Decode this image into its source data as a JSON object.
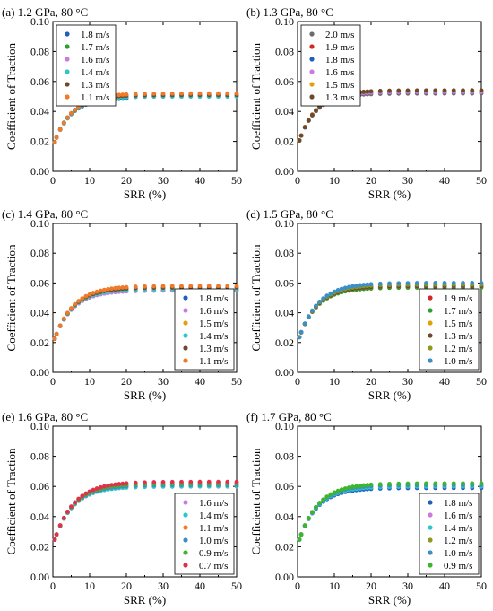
{
  "chart_data": [
    {
      "type": "scatter",
      "panel_title": "(a) 1.2 GPa, 80 °C",
      "xlabel": "SRR (%)",
      "ylabel": "Coefficient of Traction",
      "xlim": [
        0,
        50
      ],
      "ylim": [
        0,
        0.1
      ],
      "xticks": [
        0,
        10,
        20,
        30,
        40,
        50
      ],
      "yticks": [
        "0.00",
        "0.02",
        "0.04",
        "0.06",
        "0.08",
        "0.10"
      ],
      "legend_position": "top-left",
      "x": [
        0.5,
        1,
        2,
        3,
        4,
        5,
        6,
        7,
        8,
        9,
        10,
        11,
        12,
        13,
        14,
        15,
        16,
        17,
        18,
        19,
        20,
        22.5,
        25,
        27.5,
        30,
        32.5,
        35,
        37.5,
        40,
        42.5,
        45,
        47.5,
        50
      ],
      "series": [
        {
          "name": "1.8 m/s",
          "color": "#1f5fbf",
          "ymax": 0.049,
          "tau": 4.5,
          "y0": 0.016,
          "xmax": 22
        },
        {
          "name": "1.7 m/s",
          "color": "#2ca02c",
          "ymax": 0.05,
          "tau": 4.5,
          "y0": 0.016,
          "xmax": 50
        },
        {
          "name": "1.6 m/s",
          "color": "#c77ddf",
          "ymax": 0.05,
          "tau": 4.6,
          "y0": 0.016,
          "xmax": 50
        },
        {
          "name": "1.4 m/s",
          "color": "#2bc8c8",
          "ymax": 0.05,
          "tau": 4.7,
          "y0": 0.016,
          "xmax": 50
        },
        {
          "name": "1.3 m/s",
          "color": "#6b4a2e",
          "ymax": 0.051,
          "tau": 4.8,
          "y0": 0.016,
          "xmax": 50
        },
        {
          "name": "1.1 m/s",
          "color": "#f07a2a",
          "ymax": 0.052,
          "tau": 5.0,
          "y0": 0.016,
          "xmax": 50
        }
      ]
    },
    {
      "type": "scatter",
      "panel_title": "(b) 1.3 GPa, 80 °C",
      "xlabel": "SRR (%)",
      "ylabel": "Coefficient of Traction",
      "xlim": [
        0,
        50
      ],
      "ylim": [
        0,
        0.1
      ],
      "xticks": [
        0,
        10,
        20,
        30,
        40,
        50
      ],
      "yticks": [
        "0.00",
        "0.02",
        "0.04",
        "0.06",
        "0.08",
        "0.10"
      ],
      "legend_position": "top-left",
      "x": [
        0.5,
        1,
        2,
        3,
        4,
        5,
        6,
        7,
        8,
        9,
        10,
        11,
        12,
        13,
        14,
        15,
        16,
        17,
        18,
        19,
        20,
        22.5,
        25,
        27.5,
        30,
        32.5,
        35,
        37.5,
        40,
        42.5,
        45,
        47.5,
        50
      ],
      "series": [
        {
          "name": "2.0 m/s",
          "color": "#6b6b6b",
          "ymax": 0.052,
          "tau": 4.6,
          "y0": 0.017,
          "xmax": 50
        },
        {
          "name": "1.9 m/s",
          "color": "#d62728",
          "ymax": 0.053,
          "tau": 4.6,
          "y0": 0.017,
          "xmax": 50
        },
        {
          "name": "1.8 m/s",
          "color": "#1f5fbf",
          "ymax": 0.053,
          "tau": 4.7,
          "y0": 0.017,
          "xmax": 50
        },
        {
          "name": "1.6 m/s",
          "color": "#c77ddf",
          "ymax": 0.053,
          "tau": 4.7,
          "y0": 0.017,
          "xmax": 50
        },
        {
          "name": "1.5 m/s",
          "color": "#e0a10b",
          "ymax": 0.054,
          "tau": 4.8,
          "y0": 0.017,
          "xmax": 50
        },
        {
          "name": "1.3 m/s",
          "color": "#6b4a2e",
          "ymax": 0.054,
          "tau": 4.9,
          "y0": 0.017,
          "xmax": 50
        }
      ]
    },
    {
      "type": "scatter",
      "panel_title": "(c) 1.4 GPa, 80 °C",
      "xlabel": "SRR (%)",
      "ylabel": "Coefficient of Traction",
      "xlim": [
        0,
        50
      ],
      "ylim": [
        0,
        0.1
      ],
      "xticks": [
        0,
        10,
        20,
        30,
        40,
        50
      ],
      "yticks": [
        "0.00",
        "0.02",
        "0.04",
        "0.06",
        "0.08",
        "0.10"
      ],
      "legend_position": "bottom-right",
      "x": [
        0.5,
        1,
        2,
        3,
        4,
        5,
        6,
        7,
        8,
        9,
        10,
        11,
        12,
        13,
        14,
        15,
        16,
        17,
        18,
        19,
        20,
        22.5,
        25,
        27.5,
        30,
        32.5,
        35,
        37.5,
        40,
        42.5,
        45,
        47.5,
        50
      ],
      "series": [
        {
          "name": "1.8 m/s",
          "color": "#1f5fbf",
          "ymax": 0.055,
          "tau": 4.9,
          "y0": 0.019,
          "xmax": 50
        },
        {
          "name": "1.6 m/s",
          "color": "#c77ddf",
          "ymax": 0.055,
          "tau": 4.9,
          "y0": 0.019,
          "xmax": 50
        },
        {
          "name": "1.5 m/s",
          "color": "#e0a10b",
          "ymax": 0.056,
          "tau": 5.0,
          "y0": 0.019,
          "xmax": 50
        },
        {
          "name": "1.4 m/s",
          "color": "#2bc8c8",
          "ymax": 0.056,
          "tau": 5.0,
          "y0": 0.019,
          "xmax": 50
        },
        {
          "name": "1.3 m/s",
          "color": "#6b4a2e",
          "ymax": 0.057,
          "tau": 5.1,
          "y0": 0.019,
          "xmax": 50
        },
        {
          "name": "1.1 m/s",
          "color": "#f07a2a",
          "ymax": 0.058,
          "tau": 5.2,
          "y0": 0.019,
          "xmax": 50
        }
      ]
    },
    {
      "type": "scatter",
      "panel_title": "(d) 1.5 GPa, 80 °C",
      "xlabel": "SRR (%)",
      "ylabel": "Coefficient of Traction",
      "xlim": [
        0,
        50
      ],
      "ylim": [
        0,
        0.1
      ],
      "xticks": [
        0,
        10,
        20,
        30,
        40,
        50
      ],
      "yticks": [
        "0.00",
        "0.02",
        "0.04",
        "0.06",
        "0.08",
        "0.10"
      ],
      "legend_position": "bottom-right",
      "x": [
        0.5,
        1,
        2,
        3,
        4,
        5,
        6,
        7,
        8,
        9,
        10,
        11,
        12,
        13,
        14,
        15,
        16,
        17,
        18,
        19,
        20,
        22.5,
        25,
        27.5,
        30,
        32.5,
        35,
        37.5,
        40,
        42.5,
        45,
        47.5,
        50
      ],
      "series": [
        {
          "name": "1.9 m/s",
          "color": "#d62728",
          "ymax": 0.057,
          "tau": 4.9,
          "y0": 0.02,
          "xmax": 50
        },
        {
          "name": "1.7 m/s",
          "color": "#2ca02c",
          "ymax": 0.057,
          "tau": 4.9,
          "y0": 0.02,
          "xmax": 50
        },
        {
          "name": "1.5 m/s",
          "color": "#e0a10b",
          "ymax": 0.058,
          "tau": 5.0,
          "y0": 0.02,
          "xmax": 50
        },
        {
          "name": "1.3 m/s",
          "color": "#6b4a2e",
          "ymax": 0.058,
          "tau": 5.0,
          "y0": 0.02,
          "xmax": 50
        },
        {
          "name": "1.2 m/s",
          "color": "#8c9a1e",
          "ymax": 0.059,
          "tau": 5.1,
          "y0": 0.02,
          "xmax": 50
        },
        {
          "name": "1.0 m/s",
          "color": "#3a8fc9",
          "ymax": 0.06,
          "tau": 5.2,
          "y0": 0.02,
          "xmax": 50
        }
      ]
    },
    {
      "type": "scatter",
      "panel_title": "(e) 1.6 GPa, 80 °C",
      "xlabel": "SRR (%)",
      "ylabel": "Coefficient of Traction",
      "xlim": [
        0,
        50
      ],
      "ylim": [
        0,
        0.1
      ],
      "xticks": [
        0,
        10,
        20,
        30,
        40,
        50
      ],
      "yticks": [
        "0.00",
        "0.02",
        "0.04",
        "0.06",
        "0.08",
        "0.10"
      ],
      "legend_position": "bottom-right",
      "x": [
        0.5,
        1,
        2,
        3,
        4,
        5,
        6,
        7,
        8,
        9,
        10,
        11,
        12,
        13,
        14,
        15,
        16,
        17,
        18,
        19,
        20,
        22.5,
        25,
        27.5,
        30,
        32.5,
        35,
        37.5,
        40,
        42.5,
        45,
        47.5,
        50
      ],
      "series": [
        {
          "name": "1.6 m/s",
          "color": "#c77ddf",
          "ymax": 0.06,
          "tau": 5.0,
          "y0": 0.021,
          "xmax": 50
        },
        {
          "name": "1.4 m/s",
          "color": "#2bc8c8",
          "ymax": 0.06,
          "tau": 5.0,
          "y0": 0.021,
          "xmax": 50
        },
        {
          "name": "1.1 m/s",
          "color": "#f07a2a",
          "ymax": 0.061,
          "tau": 5.1,
          "y0": 0.021,
          "xmax": 50
        },
        {
          "name": "1.0 m/s",
          "color": "#3a8fc9",
          "ymax": 0.061,
          "tau": 5.1,
          "y0": 0.021,
          "xmax": 50
        },
        {
          "name": "0.9 m/s",
          "color": "#3cb62c",
          "ymax": 0.062,
          "tau": 5.2,
          "y0": 0.021,
          "xmax": 50
        },
        {
          "name": "0.7 m/s",
          "color": "#e0314b",
          "ymax": 0.063,
          "tau": 5.3,
          "y0": 0.021,
          "xmax": 50
        }
      ]
    },
    {
      "type": "scatter",
      "panel_title": "(f) 1.7 GPa, 80 °C",
      "xlabel": "SRR (%)",
      "ylabel": "Coefficient of Traction",
      "xlim": [
        0,
        50
      ],
      "ylim": [
        0,
        0.1
      ],
      "xticks": [
        0,
        10,
        20,
        30,
        40,
        50
      ],
      "yticks": [
        "0.00",
        "0.02",
        "0.04",
        "0.06",
        "0.08",
        "0.10"
      ],
      "legend_position": "bottom-right",
      "x": [
        0.5,
        1,
        2,
        3,
        4,
        5,
        6,
        7,
        8,
        9,
        10,
        11,
        12,
        13,
        14,
        15,
        16,
        17,
        18,
        19,
        20,
        22.5,
        25,
        27.5,
        30,
        32.5,
        35,
        37.5,
        40,
        42.5,
        45,
        47.5,
        50
      ],
      "series": [
        {
          "name": "1.8 m/s",
          "color": "#1f5fbf",
          "ymax": 0.059,
          "tau": 4.9,
          "y0": 0.021,
          "xmax": 50
        },
        {
          "name": "1.6 m/s",
          "color": "#c77ddf",
          "ymax": 0.06,
          "tau": 4.9,
          "y0": 0.021,
          "xmax": 50
        },
        {
          "name": "1.4 m/s",
          "color": "#2bc8c8",
          "ymax": 0.06,
          "tau": 5.0,
          "y0": 0.021,
          "xmax": 50
        },
        {
          "name": "1.2 m/s",
          "color": "#8c9a1e",
          "ymax": 0.061,
          "tau": 5.0,
          "y0": 0.021,
          "xmax": 50
        },
        {
          "name": "1.0 m/s",
          "color": "#3a8fc9",
          "ymax": 0.061,
          "tau": 5.1,
          "y0": 0.021,
          "xmax": 50
        },
        {
          "name": "0.9 m/s",
          "color": "#3cb62c",
          "ymax": 0.062,
          "tau": 5.2,
          "y0": 0.021,
          "xmax": 50
        }
      ]
    }
  ]
}
